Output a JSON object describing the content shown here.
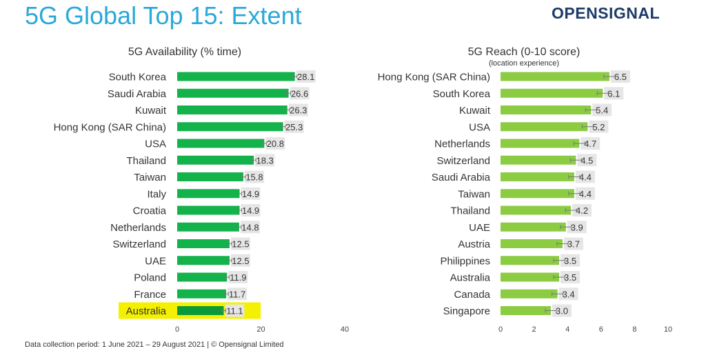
{
  "page": {
    "title": "5G Global Top 15: Extent",
    "logo": "OPENSIGNAL",
    "footer": "Data collection period: 1 June 2021 – 29 August 2021  |  © Opensignal Limited"
  },
  "colors": {
    "title": "#2aa8d8",
    "availability_bar": "#13b24a",
    "availability_highlight_bar": "#0b9a3a",
    "reach_bar": "#8ccc43",
    "label_bg": "#e6e6e6",
    "highlight": "#f4f000"
  },
  "chart_data": [
    {
      "type": "bar",
      "orientation": "horizontal",
      "title": "5G Availability (% time)",
      "subtitle": "",
      "categories": [
        "South Korea",
        "Saudi Arabia",
        "Kuwait",
        "Hong Kong (SAR China)",
        "USA",
        "Thailand",
        "Taiwan",
        "Italy",
        "Croatia",
        "Netherlands",
        "Switzerland",
        "UAE",
        "Poland",
        "France",
        "Australia"
      ],
      "values": [
        28.1,
        26.6,
        26.3,
        25.3,
        20.8,
        18.3,
        15.8,
        14.9,
        14.9,
        14.8,
        12.5,
        12.5,
        11.9,
        11.7,
        11.1
      ],
      "value_labels": [
        "28.1",
        "26.6",
        "26.3",
        "25.3",
        "20.8",
        "18.3",
        "15.8",
        "14.9",
        "14.9",
        "14.8",
        "12.5",
        "12.5",
        "11.9",
        "11.7",
        "11.1"
      ],
      "highlighted_category": "Australia",
      "xlim": [
        0,
        40
      ],
      "xticks": [
        "0",
        "20",
        "40"
      ],
      "error_bars": true,
      "grid": false
    },
    {
      "type": "bar",
      "orientation": "horizontal",
      "title": "5G Reach (0-10 score)",
      "subtitle": "(location experience)",
      "categories": [
        "Hong Kong (SAR China)",
        "South Korea",
        "Kuwait",
        "USA",
        "Netherlands",
        "Switzerland",
        "Saudi Arabia",
        "Taiwan",
        "Thailand",
        "UAE",
        "Austria",
        "Philippines",
        "Australia",
        "Canada",
        "Singapore"
      ],
      "values": [
        6.5,
        6.1,
        5.4,
        5.2,
        4.7,
        4.5,
        4.4,
        4.4,
        4.2,
        3.9,
        3.7,
        3.5,
        3.5,
        3.4,
        3.0
      ],
      "value_labels": [
        "6.5",
        "6.1",
        "5.4",
        "5.2",
        "4.7",
        "4.5",
        "4.4",
        "4.4",
        "4.2",
        "3.9",
        "3.7",
        "3.5",
        "3.5",
        "3.4",
        "3.0"
      ],
      "highlighted_category": "",
      "xlim": [
        0,
        10
      ],
      "xticks": [
        "0",
        "2",
        "4",
        "6",
        "8",
        "10"
      ],
      "error_bars": true,
      "grid": false
    }
  ]
}
